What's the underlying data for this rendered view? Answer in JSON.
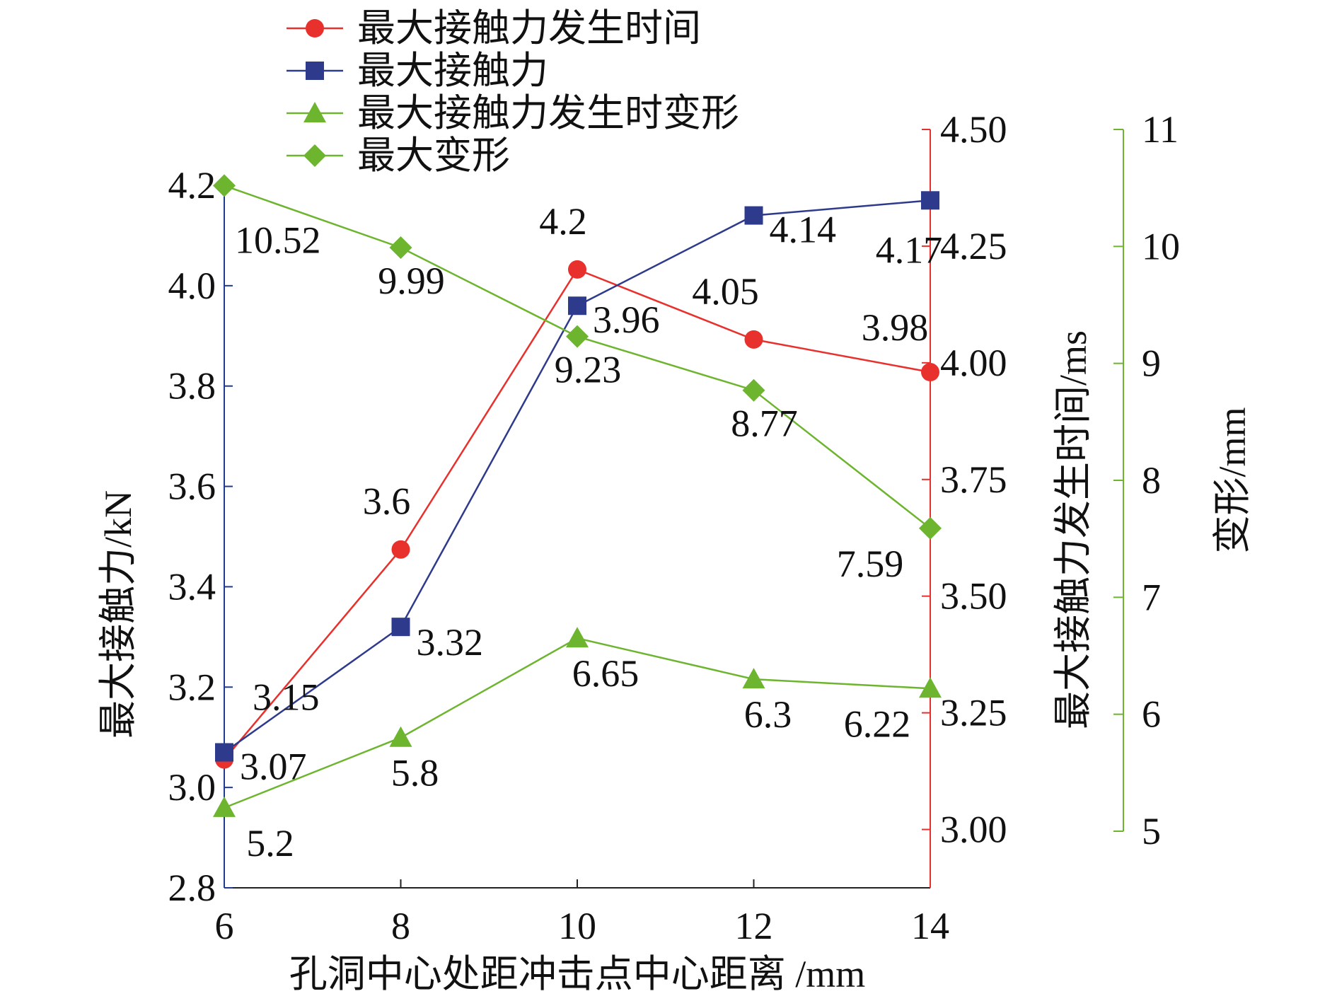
{
  "colors": {
    "time": "#e8302c",
    "force": "#2e3a8c",
    "deform": "#6db52f",
    "axis": "#1f3a93"
  },
  "chart_data": {
    "type": "line",
    "x": [
      6,
      8,
      10,
      12,
      14
    ],
    "xlabel": "孔洞中心处距冲击点中心距离 /mm",
    "xlim": [
      6,
      14
    ],
    "x_ticks": [
      "6",
      "8",
      "10",
      "12",
      "14"
    ],
    "axes": {
      "left": {
        "label": "最大接触力/kN",
        "range": [
          2.8,
          4.2
        ],
        "ticks": [
          "2.8",
          "3.0",
          "3.2",
          "3.4",
          "3.6",
          "3.8",
          "4.0",
          "4.2"
        ]
      },
      "right1": {
        "label": "最大接触力发生时间/ms",
        "range": [
          2.875,
          4.5
        ],
        "ticks": [
          "3.00",
          "3.25",
          "3.50",
          "3.75",
          "4.00",
          "4.25",
          "4.50"
        ]
      },
      "right2": {
        "label": "变形/mm",
        "range": [
          5,
          11
        ],
        "ticks": [
          "5",
          "6",
          "7",
          "8",
          "9",
          "10",
          "11"
        ]
      }
    },
    "legend_position": "top-left",
    "grid": false,
    "series": [
      {
        "name": "最大接触力发生时间",
        "axis": "right1",
        "marker": "circle",
        "color": "#e8302c",
        "values": [
          3.15,
          3.6,
          4.2,
          4.05,
          3.98
        ],
        "labels": [
          "3.15",
          "3.6",
          "4.2",
          "4.05",
          "3.98"
        ]
      },
      {
        "name": "最大接触力",
        "axis": "left",
        "marker": "square",
        "color": "#2e3a8c",
        "values": [
          3.07,
          3.32,
          3.96,
          4.14,
          4.17
        ],
        "labels": [
          "3.07",
          "3.32",
          "3.96",
          "4.14",
          "4.17"
        ]
      },
      {
        "name": "最大接触力发生时变形",
        "axis": "right2",
        "marker": "triangle",
        "color": "#6db52f",
        "values": [
          5.2,
          5.8,
          6.65,
          6.3,
          6.22
        ],
        "labels": [
          "5.2",
          "5.8",
          "6.65",
          "6.3",
          "6.22"
        ]
      },
      {
        "name": "最大变形",
        "axis": "right2",
        "marker": "diamond",
        "color": "#6db52f",
        "values": [
          10.52,
          9.99,
          9.23,
          8.77,
          7.59
        ],
        "labels": [
          "10.52",
          "9.99",
          "9.23",
          "8.77",
          "7.59"
        ]
      }
    ]
  }
}
